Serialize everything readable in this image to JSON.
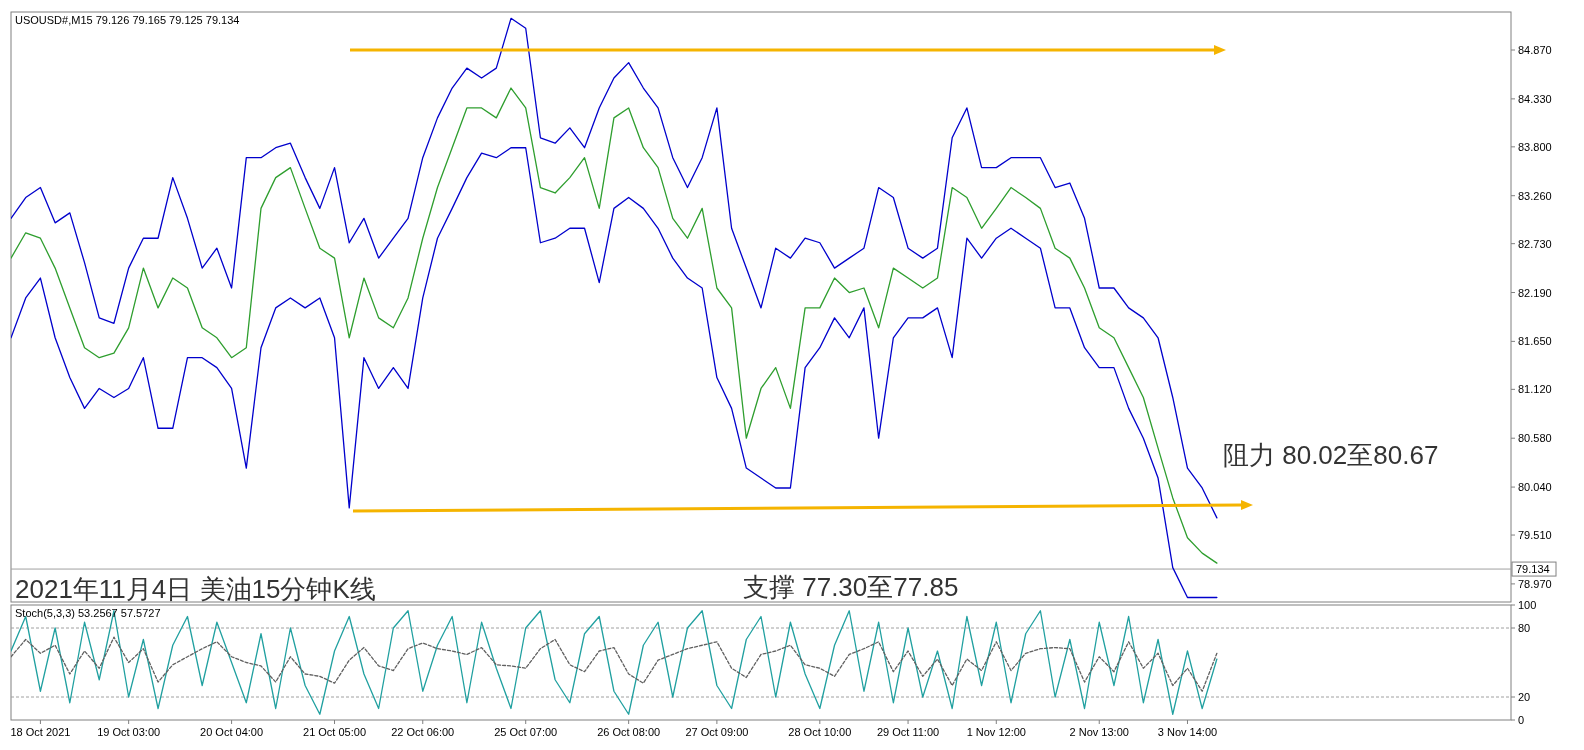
{
  "chart_data": [
    {
      "type": "line",
      "title": "USOUSD#,M15 79.126 79.165 79.125 79.134",
      "tick_labels": "y",
      "grid": false,
      "categories": [
        null,
        null,
        null,
        null,
        null,
        null,
        null,
        null,
        null,
        null,
        null,
        null,
        null,
        null,
        null,
        null,
        null,
        null,
        null,
        null,
        null,
        null,
        null,
        null,
        null,
        null,
        null,
        null,
        null,
        null,
        null,
        null,
        null,
        null,
        null,
        null,
        null,
        null,
        null,
        null,
        null,
        null,
        null,
        null,
        null,
        null,
        null,
        null,
        null,
        null,
        null,
        null,
        null,
        null,
        null,
        null,
        null,
        null,
        null,
        null,
        null,
        null,
        null,
        null,
        null,
        null,
        null,
        null,
        null,
        null,
        null,
        null,
        null,
        null,
        null,
        null,
        null,
        null,
        null,
        null,
        null,
        null,
        null,
        null,
        null,
        null,
        null,
        null,
        null,
        null,
        null,
        null,
        null,
        null,
        null,
        null,
        null,
        null,
        null,
        null,
        null,
        null,
        null
      ],
      "ylim": [
        78.77,
        85.29
      ],
      "yticks": [
        {
          "value": 84.87,
          "label": "84.870"
        },
        {
          "value": 84.33,
          "label": "84.330"
        },
        {
          "value": 83.8,
          "label": "83.800"
        },
        {
          "value": 83.26,
          "label": "83.260"
        },
        {
          "value": 82.73,
          "label": "82.730"
        },
        {
          "value": 82.19,
          "label": "82.190"
        },
        {
          "value": 81.65,
          "label": "81.650"
        },
        {
          "value": 81.12,
          "label": "81.120"
        },
        {
          "value": 80.58,
          "label": "80.580"
        },
        {
          "value": 80.04,
          "label": "80.040"
        },
        {
          "value": 79.51,
          "label": "79.510"
        },
        {
          "value": 78.97,
          "label": "78.970"
        }
      ],
      "series": [
        {
          "color": "#0000cc",
          "values": [
            83.01,
            83.24,
            83.35,
            82.96,
            83.07,
            82.52,
            81.91,
            81.85,
            82.46,
            82.79,
            82.79,
            83.46,
            83.01,
            82.46,
            82.68,
            82.24,
            83.68,
            83.68,
            83.79,
            83.84,
            83.46,
            83.12,
            83.57,
            82.74,
            83.01,
            82.57,
            82.79,
            83.01,
            83.68,
            84.12,
            84.45,
            84.67,
            84.56,
            84.67,
            85.22,
            85.11,
            83.9,
            83.84,
            84.01,
            83.79,
            84.23,
            84.56,
            84.73,
            84.45,
            84.23,
            83.68,
            83.35,
            83.68,
            84.23,
            82.9,
            82.46,
            82.02,
            82.68,
            82.57,
            82.79,
            82.74,
            82.46,
            82.57,
            82.68,
            83.35,
            83.24,
            82.68,
            82.57,
            82.68,
            83.9,
            84.23,
            83.57,
            83.57,
            83.68,
            83.68,
            83.68,
            83.35,
            83.4,
            83.01,
            82.24,
            82.24,
            82.02,
            81.91,
            81.69,
            81.03,
            80.25,
            80.03,
            79.7,
            null,
            null,
            null,
            null,
            null,
            null,
            null,
            null,
            null,
            null,
            null,
            null,
            null,
            null,
            null,
            null,
            null,
            null,
            null,
            null
          ]
        },
        {
          "color": "#0000cc",
          "values": [
            81.69,
            82.13,
            82.35,
            81.69,
            81.25,
            80.91,
            81.13,
            81.03,
            81.13,
            81.47,
            80.69,
            80.69,
            81.47,
            81.47,
            81.36,
            81.13,
            80.25,
            81.58,
            82.02,
            82.13,
            82.02,
            82.13,
            81.69,
            79.81,
            81.47,
            81.13,
            81.36,
            81.13,
            82.13,
            82.79,
            83.12,
            83.46,
            83.73,
            83.68,
            83.79,
            83.79,
            82.74,
            82.79,
            82.9,
            82.9,
            82.3,
            83.12,
            83.24,
            83.12,
            82.9,
            82.57,
            82.35,
            82.24,
            81.25,
            80.91,
            80.25,
            80.14,
            80.03,
            80.03,
            81.36,
            81.58,
            81.91,
            81.69,
            82.02,
            80.58,
            81.69,
            81.91,
            81.91,
            82.02,
            81.47,
            82.79,
            82.57,
            82.79,
            82.9,
            82.79,
            82.68,
            82.02,
            82.02,
            81.58,
            81.36,
            81.36,
            80.91,
            80.58,
            80.14,
            79.15,
            78.82,
            78.82,
            78.82,
            null,
            null,
            null,
            null,
            null,
            null,
            null,
            null,
            null,
            null,
            null,
            null,
            null,
            null,
            null,
            null,
            null,
            null,
            null,
            null
          ]
        },
        {
          "color": "#2e9e2e",
          "values": [
            82.57,
            82.85,
            82.79,
            82.46,
            82.02,
            81.58,
            81.47,
            81.52,
            81.8,
            82.46,
            82.02,
            82.35,
            82.24,
            81.8,
            81.69,
            81.47,
            81.58,
            83.12,
            83.46,
            83.57,
            83.12,
            82.68,
            82.57,
            81.69,
            82.35,
            81.91,
            81.8,
            82.13,
            82.79,
            83.35,
            83.79,
            84.23,
            84.23,
            84.12,
            84.45,
            84.23,
            83.35,
            83.29,
            83.46,
            83.68,
            83.12,
            84.12,
            84.23,
            83.79,
            83.57,
            83.01,
            82.79,
            83.12,
            82.24,
            82.02,
            80.58,
            81.13,
            81.36,
            80.91,
            82.02,
            82.02,
            82.35,
            82.19,
            82.24,
            81.8,
            82.46,
            82.35,
            82.24,
            82.35,
            83.35,
            83.24,
            82.9,
            83.12,
            83.35,
            83.24,
            83.12,
            82.68,
            82.57,
            82.24,
            81.8,
            81.69,
            81.36,
            81.03,
            80.47,
            79.92,
            79.48,
            79.31,
            79.2,
            null,
            null,
            null,
            null,
            null,
            null,
            null,
            null,
            null,
            null,
            null,
            null,
            null,
            null,
            null,
            null,
            null,
            null,
            null,
            null
          ]
        }
      ],
      "ref_lines": [
        {
          "axis": "y",
          "value": 79.134,
          "label": "79.134",
          "color": "#a0a0a0"
        }
      ],
      "annotations": [
        "阻力 80.02至80.67",
        "2021年11月4日 美油15分钟K线",
        "支撑 77.30至77.85"
      ]
    },
    {
      "type": "line",
      "title": "Stoch(5,3,3) 53.2567 57.5727",
      "grid": false,
      "categories": [
        null,
        null,
        "18 Oct 2021",
        null,
        null,
        null,
        null,
        null,
        "19 Oct 03:00",
        null,
        null,
        null,
        null,
        null,
        null,
        "20 Oct 04:00",
        null,
        null,
        null,
        null,
        null,
        null,
        "21 Oct 05:00",
        null,
        null,
        null,
        null,
        null,
        "22 Oct 06:00",
        null,
        null,
        null,
        null,
        null,
        null,
        "25 Oct 07:00",
        null,
        null,
        null,
        null,
        null,
        null,
        "26 Oct 08:00",
        null,
        null,
        null,
        null,
        null,
        "27 Oct 09:00",
        null,
        null,
        null,
        null,
        null,
        null,
        "28 Oct 10:00",
        null,
        null,
        null,
        null,
        null,
        "29 Oct 11:00",
        null,
        null,
        null,
        null,
        null,
        "1 Nov 12:00",
        null,
        null,
        null,
        null,
        null,
        null,
        "2 Nov 13:00",
        null,
        null,
        null,
        null,
        null,
        "3 Nov 14:00",
        null,
        null,
        null,
        null,
        null,
        null,
        null,
        null,
        null,
        null,
        null,
        null,
        null,
        null,
        null,
        null,
        null,
        null,
        null,
        null,
        null,
        null
      ],
      "ylim": [
        0,
        100
      ],
      "yticks": [
        100,
        80,
        20,
        0
      ],
      "series": [
        {
          "color": "#20a0a0",
          "line_style": "solid",
          "values": [
            60,
            90,
            25,
            80,
            15,
            85,
            35,
            95,
            20,
            70,
            10,
            65,
            90,
            30,
            85,
            50,
            15,
            75,
            10,
            80,
            30,
            5,
            60,
            90,
            40,
            10,
            80,
            95,
            25,
            65,
            90,
            15,
            85,
            45,
            10,
            80,
            95,
            35,
            15,
            75,
            90,
            25,
            5,
            65,
            85,
            20,
            80,
            95,
            30,
            10,
            70,
            90,
            20,
            85,
            40,
            10,
            65,
            95,
            25,
            85,
            15,
            80,
            20,
            60,
            10,
            90,
            30,
            85,
            15,
            75,
            95,
            20,
            70,
            10,
            85,
            30,
            90,
            15,
            70,
            5,
            60,
            10,
            53,
            null,
            null,
            null,
            null,
            null,
            null,
            null,
            null,
            null,
            null,
            null,
            null,
            null,
            null,
            null,
            null,
            null,
            null,
            null,
            null
          ]
        },
        {
          "color": "#606060",
          "line_style": "dashed",
          "values": [
            55,
            70,
            58,
            65,
            40,
            60,
            45,
            72,
            50,
            62,
            33,
            48,
            55,
            62,
            68,
            55,
            50,
            47,
            33,
            55,
            40,
            38,
            32,
            52,
            63,
            47,
            43,
            62,
            67,
            62,
            60,
            57,
            63,
            48,
            47,
            45,
            62,
            70,
            48,
            42,
            60,
            63,
            40,
            32,
            52,
            57,
            62,
            65,
            68,
            45,
            37,
            57,
            60,
            65,
            48,
            45,
            38,
            57,
            62,
            68,
            42,
            60,
            38,
            53,
            30,
            53,
            43,
            68,
            43,
            58,
            62,
            63,
            62,
            33,
            55,
            42,
            68,
            45,
            58,
            30,
            45,
            25,
            58,
            null,
            null,
            null,
            null,
            null,
            null,
            null,
            null,
            null,
            null,
            null,
            null,
            null,
            null,
            null,
            null,
            null,
            null,
            null,
            null
          ]
        }
      ],
      "ref_lines": [
        {
          "axis": "y",
          "value": 80,
          "color": "#a0a0a0",
          "line_style": "dashed"
        },
        {
          "axis": "y",
          "value": 20,
          "color": "#a0a0a0",
          "line_style": "dashed"
        }
      ]
    }
  ]
}
